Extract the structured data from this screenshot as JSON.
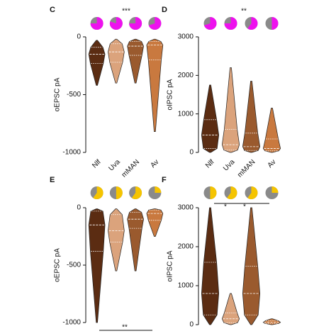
{
  "chart_data": [
    {
      "type": "violin",
      "panel_label": "C",
      "ylabel": "oEPSC pA",
      "categories": [
        "Nlf",
        "Uva",
        "mMAN",
        "Av"
      ],
      "colors": [
        "#5b2c12",
        "#dba37c",
        "#9a5a2e",
        "#c9793f"
      ],
      "min": [
        -420,
        -400,
        -400,
        -820
      ],
      "q1": [
        -230,
        -220,
        -160,
        -200
      ],
      "median": [
        -150,
        -130,
        -80,
        -70
      ],
      "q3": [
        -90,
        -60,
        -40,
        -40
      ],
      "max": [
        -30,
        -20,
        -20,
        -20
      ],
      "ylim": [
        -1000,
        0
      ],
      "yticks": [
        0,
        -500,
        -1000
      ],
      "pie_values": [
        0.75,
        0.8,
        0.75,
        0.7
      ],
      "pie_color": "#ee11ee",
      "annotations": [
        "***"
      ]
    },
    {
      "type": "violin",
      "panel_label": "D",
      "ylabel": "oIPSC pA",
      "categories": [
        "Nlf",
        "Uva",
        "mMAN",
        "Av"
      ],
      "colors": [
        "#5b2c12",
        "#dba37c",
        "#9a5a2e",
        "#c9793f"
      ],
      "min": [
        0,
        0,
        0,
        0
      ],
      "q1": [
        100,
        60,
        50,
        40
      ],
      "median": [
        450,
        200,
        150,
        100
      ],
      "q3": [
        850,
        600,
        500,
        350
      ],
      "max": [
        1750,
        2200,
        1850,
        1150
      ],
      "ylim": [
        0,
        3000
      ],
      "yticks": [
        0,
        1000,
        2000,
        3000
      ],
      "pie_values": [
        0.7,
        0.75,
        0.6,
        0.5
      ],
      "pie_color": "#ee11ee",
      "annotations": [
        "**"
      ]
    },
    {
      "type": "violin",
      "panel_label": "E",
      "ylabel": "oEPSC pA",
      "categories": [
        null,
        null,
        null,
        null
      ],
      "colors": [
        "#5b2c12",
        "#dba37c",
        "#9a5a2e",
        "#c9793f"
      ],
      "min": [
        -1000,
        -550,
        -550,
        -250
      ],
      "q1": [
        -380,
        -300,
        -180,
        -110
      ],
      "median": [
        -150,
        -200,
        -100,
        -50
      ],
      "q3": [
        -30,
        -60,
        -40,
        -20
      ],
      "max": [
        -10,
        -10,
        -10,
        -10
      ],
      "ylim": [
        -1000,
        0
      ],
      "yticks": [
        0,
        -500,
        -1000
      ],
      "pie_values": [
        0.6,
        0.5,
        0.6,
        0.25
      ],
      "pie_color": "#f5c400",
      "annotations": [
        "**"
      ]
    },
    {
      "type": "violin",
      "panel_label": "F",
      "ylabel": "oIPSC pA",
      "categories": [
        null,
        null,
        null,
        null
      ],
      "colors": [
        "#5b2c12",
        "#dba37c",
        "#9a5a2e",
        "#c9793f"
      ],
      "min": [
        0,
        0,
        0,
        0
      ],
      "q1": [
        250,
        50,
        250,
        30
      ],
      "median": [
        800,
        150,
        800,
        60
      ],
      "q3": [
        1600,
        300,
        1500,
        100
      ],
      "max": [
        3000,
        800,
        3000,
        150
      ],
      "ylim": [
        0,
        3000
      ],
      "yticks": [
        0,
        1000,
        2000,
        3000
      ],
      "pie_values": [
        0.5,
        0.6,
        0.6,
        0.25
      ],
      "pie_color": "#f5c400",
      "annotations": [
        "*",
        "*"
      ]
    }
  ]
}
